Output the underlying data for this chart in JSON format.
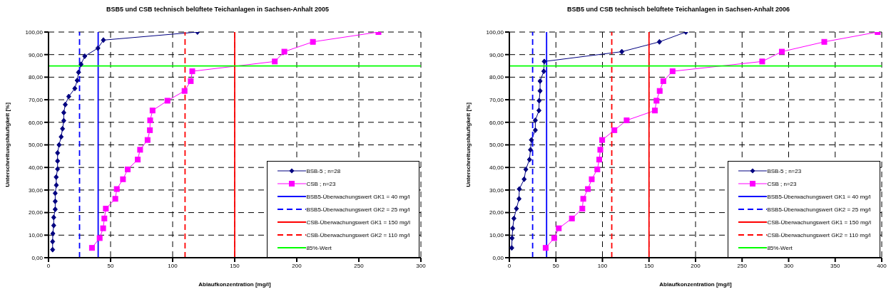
{
  "chart_data": [
    {
      "type": "line",
      "title": "BSB5 und CSB technisch belüftete Teichanlagen in Sachsen-Anhalt   2005",
      "xlabel": "Ablaufkonzentration [mg/l]",
      "ylabel": "Unterschreitungshäufigkeit  [%]",
      "xlim": [
        0,
        300
      ],
      "xticks": [
        0,
        50,
        100,
        150,
        200,
        250,
        300
      ],
      "ylim": [
        0,
        100
      ],
      "yticks": [
        {
          "value": 0,
          "label": "0,00"
        },
        {
          "value": 10,
          "label": "10,00"
        },
        {
          "value": 20,
          "label": "20,00"
        },
        {
          "value": 30,
          "label": "30,00"
        },
        {
          "value": 40,
          "label": "40,00"
        },
        {
          "value": 50,
          "label": "50,00"
        },
        {
          "value": 60,
          "label": "60,00"
        },
        {
          "value": 70,
          "label": "70,00"
        },
        {
          "value": 80,
          "label": "80,00"
        },
        {
          "value": 90,
          "label": "90,00"
        },
        {
          "value": 100,
          "label": "100,00"
        }
      ],
      "grid": true,
      "legend": "bottom right",
      "series": [
        {
          "name": "BSB-5 ; n=28",
          "color": "#000080",
          "marker": "diamond",
          "line_style": "solid",
          "x": [
            3.3,
            3.3,
            3.5,
            4.2,
            4.2,
            5.4,
            5.4,
            5.4,
            6.3,
            6.2,
            7.3,
            7.3,
            7.3,
            8.5,
            10.2,
            11.3,
            12.3,
            12.3,
            13.5,
            16.3,
            21.2,
            23.1,
            24.2,
            26.2,
            29.2,
            39.8,
            44.2,
            120
          ],
          "values": [
            3.57,
            7.14,
            10.71,
            14.29,
            17.86,
            21.43,
            25,
            28.57,
            32.14,
            35.71,
            39.29,
            42.86,
            46.43,
            50,
            53.57,
            57.14,
            60.71,
            64.29,
            67.86,
            71.43,
            75,
            78.57,
            82.14,
            85.71,
            89.29,
            92.86,
            96.43,
            100
          ]
        },
        {
          "name": "CSB ; n=23",
          "color": "#ff00ff",
          "marker": "square",
          "line_style": "solid",
          "x": [
            35,
            41.2,
            44,
            45,
            46.2,
            53.8,
            55,
            60,
            63.8,
            71.9,
            73.8,
            79.8,
            81.7,
            81.9,
            83.8,
            95.8,
            109.6,
            114.6,
            115.8,
            182.3,
            190,
            213,
            265.8
          ],
          "values": [
            4.35,
            8.7,
            13.04,
            17.39,
            21.74,
            26.09,
            30.43,
            34.78,
            39.13,
            43.48,
            47.83,
            52.17,
            56.52,
            60.87,
            65.22,
            69.57,
            73.91,
            78.26,
            82.61,
            86.96,
            91.3,
            95.65,
            100
          ]
        },
        {
          "name": "BSB5-Überwachungswert GK1 = 40 mg/l",
          "color": "#0000ff",
          "marker": "none",
          "line_style": "solid",
          "x": [
            40,
            40
          ],
          "values": [
            0,
            100
          ]
        },
        {
          "name": "BSB5-Überwachungswert GK2 = 25 mg/l",
          "color": "#0000ff",
          "marker": "none",
          "line_style": "dashed",
          "x": [
            25,
            25
          ],
          "values": [
            0,
            100
          ]
        },
        {
          "name": "CSB-Überwachungswert GK1 = 150 mg/l",
          "color": "#ff0000",
          "marker": "none",
          "line_style": "solid",
          "x": [
            150,
            150
          ],
          "values": [
            0,
            100
          ]
        },
        {
          "name": "CSB-Überwachungswert GK2 = 110 mg/l",
          "color": "#ff0000",
          "marker": "none",
          "line_style": "dashed",
          "x": [
            110,
            110
          ],
          "values": [
            0,
            100
          ]
        },
        {
          "name": "85%-Wert",
          "color": "#00ff00",
          "marker": "none",
          "line_style": "solid",
          "x": [
            0,
            300
          ],
          "values": [
            85,
            85
          ]
        }
      ]
    },
    {
      "type": "line",
      "title": "BSB5 und CSB technisch belüftete Teichanlagen in Sachsen-Anhalt  2006",
      "xlabel": "Ablaufkonzentration [mg/l]",
      "ylabel": "Unterschreitungshäufigkeit [%]",
      "xlim": [
        0,
        400
      ],
      "xticks": [
        0,
        50,
        100,
        150,
        200,
        250,
        300,
        350,
        400
      ],
      "ylim": [
        0,
        100
      ],
      "yticks": [
        {
          "value": 0,
          "label": "0,00"
        },
        {
          "value": 10,
          "label": "10,00"
        },
        {
          "value": 20,
          "label": "20,00"
        },
        {
          "value": 30,
          "label": "30,00"
        },
        {
          "value": 40,
          "label": "40,00"
        },
        {
          "value": 50,
          "label": "50,00"
        },
        {
          "value": 60,
          "label": "60,00"
        },
        {
          "value": 70,
          "label": "70,00"
        },
        {
          "value": 80,
          "label": "80,00"
        },
        {
          "value": 90,
          "label": "90,00"
        },
        {
          "value": 100,
          "label": "100,00"
        }
      ],
      "grid": true,
      "legend": "bottom right",
      "series": [
        {
          "name": "BSB-5 ; n=23",
          "color": "#000080",
          "marker": "diamond",
          "line_style": "solid",
          "x": [
            2.6,
            2.9,
            3.6,
            4.9,
            7.6,
            10.4,
            10.7,
            15.9,
            17.7,
            21.6,
            22.7,
            23.7,
            27.9,
            27.9,
            31.8,
            32,
            33,
            33,
            37,
            37.5,
            120.8,
            161.2,
            189.6
          ],
          "values": [
            4.35,
            8.7,
            13.04,
            17.39,
            21.74,
            26.09,
            30.43,
            34.78,
            39.13,
            43.48,
            47.83,
            52.17,
            56.52,
            60.87,
            65.22,
            69.57,
            73.91,
            78.26,
            82.61,
            86.96,
            91.3,
            95.65,
            100
          ]
        },
        {
          "name": "CSB ; n=23",
          "color": "#ff00ff",
          "marker": "square",
          "line_style": "solid",
          "x": [
            39,
            48.2,
            53.1,
            67.2,
            78.4,
            79.4,
            84.4,
            88.5,
            94.5,
            96.6,
            97.7,
            99.7,
            112.8,
            126,
            156.3,
            158.1,
            161.5,
            165.4,
            175.3,
            271.6,
            292.7,
            338.3,
            395.6
          ],
          "values": [
            4.35,
            8.7,
            13.04,
            17.39,
            21.74,
            26.09,
            30.43,
            34.78,
            39.13,
            43.48,
            47.83,
            52.17,
            56.52,
            60.87,
            65.22,
            69.57,
            73.91,
            78.26,
            82.61,
            86.96,
            91.3,
            95.65,
            100
          ]
        },
        {
          "name": "BSB5-Überwachungswert GK1 = 40 mg/l",
          "color": "#0000ff",
          "marker": "none",
          "line_style": "solid",
          "x": [
            40,
            40
          ],
          "values": [
            0,
            100
          ]
        },
        {
          "name": "BSB5-Überwachungswert GK2 = 25 mg/l",
          "color": "#0000ff",
          "marker": "none",
          "line_style": "dashed",
          "x": [
            25,
            25
          ],
          "values": [
            0,
            100
          ]
        },
        {
          "name": "CSB-Überwachungswert GK1 = 150 mg/l",
          "color": "#ff0000",
          "marker": "none",
          "line_style": "solid",
          "x": [
            150,
            150
          ],
          "values": [
            0,
            100
          ]
        },
        {
          "name": "CSB-Überwachungswert GK2 = 110 mg/l",
          "color": "#ff0000",
          "marker": "none",
          "line_style": "dashed",
          "x": [
            110,
            110
          ],
          "values": [
            0,
            100
          ]
        },
        {
          "name": "85%-Wert",
          "color": "#00ff00",
          "marker": "none",
          "line_style": "solid",
          "x": [
            0,
            400
          ],
          "values": [
            85,
            85
          ]
        }
      ]
    }
  ]
}
